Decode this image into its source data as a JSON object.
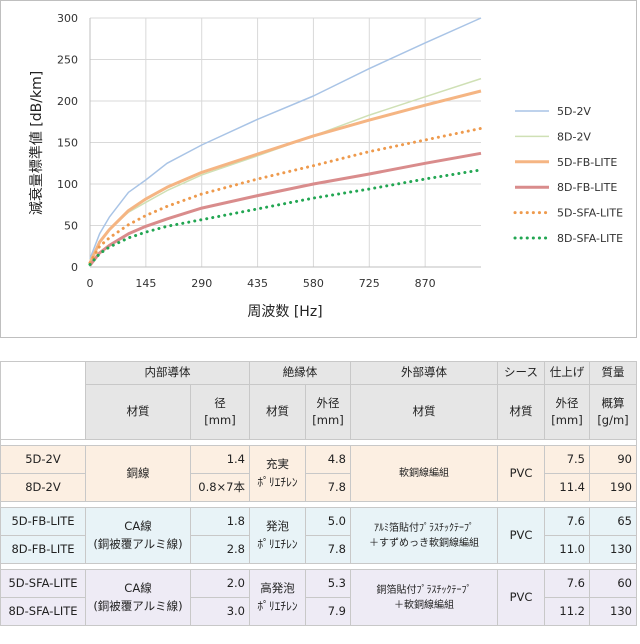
{
  "chart_data": {
    "type": "line",
    "xlabel": "周波数 [Hz]",
    "ylabel": "減衰量標準値 [dB/km]",
    "xlim": [
      0,
      1015
    ],
    "ylim": [
      0,
      300
    ],
    "xticks": [
      0,
      145,
      290,
      435,
      580,
      725,
      870
    ],
    "yticks": [
      0,
      50,
      100,
      150,
      200,
      250,
      300
    ],
    "grid": true,
    "legend_position": "right",
    "series": [
      {
        "name": "5D-2V",
        "color": "#a9c4e6",
        "style": "solid",
        "width": 1.5,
        "points": [
          [
            0,
            10
          ],
          [
            25,
            40
          ],
          [
            50,
            60
          ],
          [
            100,
            90
          ],
          [
            145,
            105
          ],
          [
            200,
            125
          ],
          [
            290,
            147
          ],
          [
            435,
            178
          ],
          [
            580,
            206
          ],
          [
            725,
            239
          ],
          [
            870,
            270
          ],
          [
            1015,
            300
          ]
        ]
      },
      {
        "name": "8D-2V",
        "color": "#cfe0b5",
        "style": "solid",
        "width": 1.5,
        "points": [
          [
            0,
            8
          ],
          [
            25,
            30
          ],
          [
            50,
            45
          ],
          [
            100,
            66
          ],
          [
            145,
            78
          ],
          [
            200,
            92
          ],
          [
            290,
            111
          ],
          [
            435,
            134
          ],
          [
            580,
            158
          ],
          [
            725,
            183
          ],
          [
            870,
            205
          ],
          [
            1015,
            227
          ]
        ]
      },
      {
        "name": "5D-FB-LITE",
        "color": "#f5b583",
        "style": "solid",
        "width": 3,
        "points": [
          [
            0,
            5
          ],
          [
            25,
            30
          ],
          [
            50,
            45
          ],
          [
            100,
            68
          ],
          [
            145,
            82
          ],
          [
            200,
            96
          ],
          [
            290,
            114
          ],
          [
            435,
            136
          ],
          [
            580,
            158
          ],
          [
            725,
            177
          ],
          [
            870,
            195
          ],
          [
            1015,
            212
          ]
        ]
      },
      {
        "name": "8D-FB-LITE",
        "color": "#d98c8c",
        "style": "solid",
        "width": 3,
        "points": [
          [
            0,
            2
          ],
          [
            25,
            17
          ],
          [
            50,
            26
          ],
          [
            100,
            40
          ],
          [
            145,
            49
          ],
          [
            200,
            58
          ],
          [
            290,
            71
          ],
          [
            435,
            86
          ],
          [
            580,
            100
          ],
          [
            725,
            112
          ],
          [
            870,
            125
          ],
          [
            1015,
            137
          ]
        ]
      },
      {
        "name": "5D-SFA-LITE",
        "color": "#ee9a4d",
        "style": "dotted",
        "width": 3,
        "points": [
          [
            0,
            5
          ],
          [
            25,
            25
          ],
          [
            50,
            35
          ],
          [
            100,
            51
          ],
          [
            145,
            62
          ],
          [
            200,
            73
          ],
          [
            290,
            88
          ],
          [
            435,
            106
          ],
          [
            580,
            122
          ],
          [
            725,
            139
          ],
          [
            870,
            153
          ],
          [
            1015,
            167
          ]
        ]
      },
      {
        "name": "8D-SFA-LITE",
        "color": "#22a652",
        "style": "dotted",
        "width": 3,
        "points": [
          [
            0,
            3
          ],
          [
            25,
            16
          ],
          [
            50,
            24
          ],
          [
            100,
            35
          ],
          [
            145,
            42
          ],
          [
            200,
            49
          ],
          [
            290,
            57
          ],
          [
            435,
            70
          ],
          [
            580,
            83
          ],
          [
            725,
            94
          ],
          [
            870,
            106
          ],
          [
            1015,
            117
          ]
        ]
      }
    ]
  },
  "table": {
    "header1": {
      "conductor": "内部導体",
      "insulator": "絶縁体",
      "outer": "外部導体",
      "sheath": "シース",
      "finish": "仕上げ",
      "mass": "質量"
    },
    "header2": {
      "cond_material": "材質",
      "cond_diameter": "径",
      "cond_diameter_unit": "[mm]",
      "ins_material": "材質",
      "ins_od": "外径",
      "ins_od_unit": "[mm]",
      "outer_material": "材質",
      "sheath_material": "材質",
      "finish_od": "外径",
      "finish_od_unit": "[mm]",
      "mass_approx": "概算",
      "mass_unit": "[g/m]"
    },
    "groups": [
      {
        "cond_material": [
          "銅線"
        ],
        "ins_material": [
          "充実",
          "ﾎﾟﾘｴﾁﾚﾝ"
        ],
        "outer_material": [
          "軟銅線編組"
        ],
        "sheath": "PVC",
        "rows": [
          {
            "name": "5D-2V",
            "diameter": "1.4",
            "ins_od": "4.8",
            "finish_od": "7.5",
            "mass": "90"
          },
          {
            "name": "8D-2V",
            "diameter": "0.8×7本",
            "ins_od": "7.8",
            "finish_od": "11.4",
            "mass": "190"
          }
        ]
      },
      {
        "cond_material": [
          "CA線",
          "(銅被覆アルミ線)"
        ],
        "ins_material": [
          "発泡",
          "ﾎﾟﾘｴﾁﾚﾝ"
        ],
        "outer_material": [
          "ｱﾙﾐ箔貼付ﾌﾟﾗｽﾁｯｸﾃｰﾌﾟ",
          "＋すずめっき軟銅線編組"
        ],
        "sheath": "PVC",
        "rows": [
          {
            "name": "5D-FB-LITE",
            "diameter": "1.8",
            "ins_od": "5.0",
            "finish_od": "7.6",
            "mass": "65"
          },
          {
            "name": "8D-FB-LITE",
            "diameter": "2.8",
            "ins_od": "7.8",
            "finish_od": "11.0",
            "mass": "130"
          }
        ]
      },
      {
        "cond_material": [
          "CA線",
          "(銅被覆アルミ線)"
        ],
        "ins_material": [
          "高発泡",
          "ﾎﾟﾘｴﾁﾚﾝ"
        ],
        "outer_material": [
          "銅箔貼付ﾌﾟﾗｽﾁｯｸﾃｰﾌﾟ",
          "＋軟銅線編組"
        ],
        "sheath": "PVC",
        "rows": [
          {
            "name": "5D-SFA-LITE",
            "diameter": "2.0",
            "ins_od": "5.3",
            "finish_od": "7.6",
            "mass": "60"
          },
          {
            "name": "8D-SFA-LITE",
            "diameter": "3.0",
            "ins_od": "7.9",
            "finish_od": "11.2",
            "mass": "130"
          }
        ]
      }
    ]
  }
}
